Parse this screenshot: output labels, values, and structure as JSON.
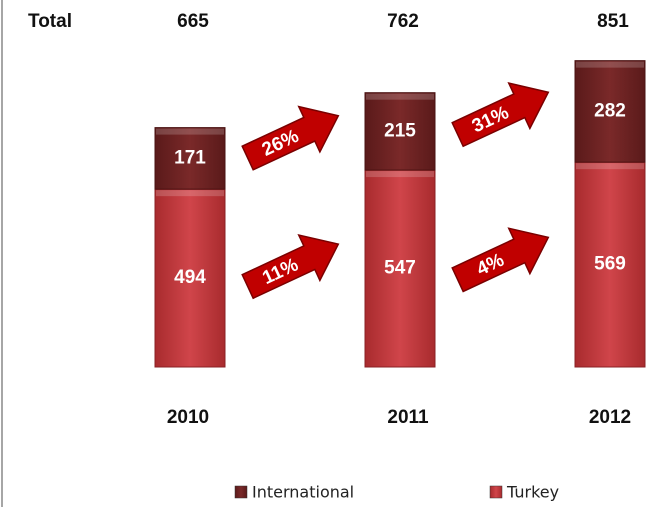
{
  "chart_data": {
    "type": "bar",
    "stacked": true,
    "categories": [
      "2010",
      "2011",
      "2012"
    ],
    "series": [
      {
        "name": "Turkey",
        "color": "#c0373a",
        "values": [
          494,
          547,
          569
        ]
      },
      {
        "name": "International",
        "color": "#6e2323",
        "values": [
          171,
          215,
          282
        ]
      }
    ],
    "totals_label": "Total",
    "totals": [
      665,
      762,
      851
    ],
    "annotations": [
      {
        "text": "26%",
        "from": 0,
        "series": 1
      },
      {
        "text": "11%",
        "from": 0,
        "series": 0
      },
      {
        "text": "31%",
        "from": 1,
        "series": 1
      },
      {
        "text": "4%",
        "from": 1,
        "series": 0
      }
    ],
    "ylim": [
      0,
      1000
    ],
    "legend": "bottom"
  }
}
